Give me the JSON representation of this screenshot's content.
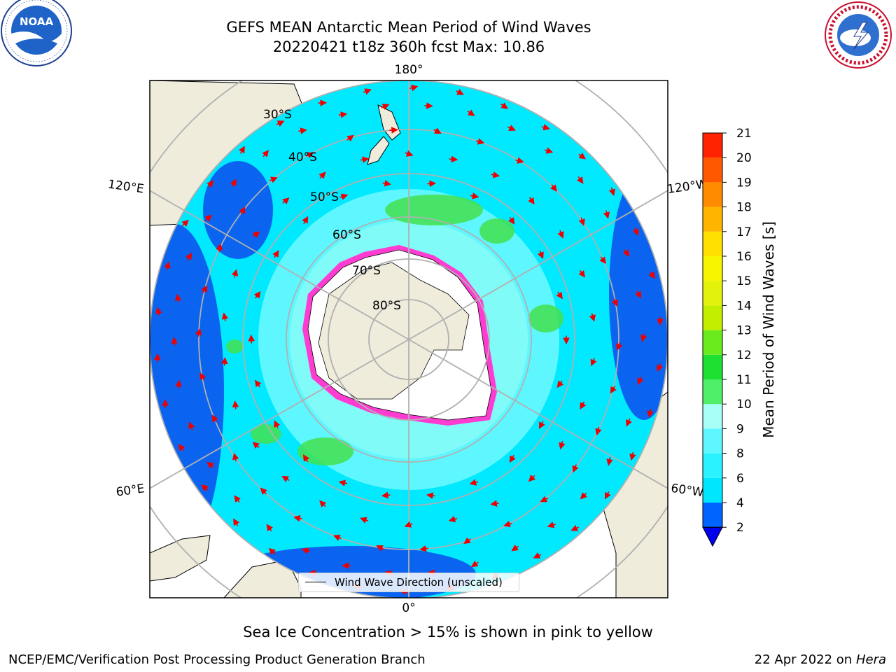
{
  "title_line1": "GEFS MEAN Antarctic Mean Period of Wind Waves",
  "title_line2": "20220421 t18z 360h fcst   Max: 10.86",
  "logos": {
    "left": {
      "name": "NOAA",
      "text": "NOAA",
      "ring_text": "NATIONAL OCEANIC AND ATMOSPHERIC ADMINISTRATION · U.S. DEPARTMENT OF COMMERCE"
    },
    "right": {
      "name": "National Weather Service",
      "ring_text": "NATIONAL WEATHER SERVICE"
    }
  },
  "map": {
    "projection": "south-polar-stereographic",
    "longitude_labels": {
      "top": "180°",
      "bottom": "0°",
      "left_upper": "120°E",
      "left_lower": "60°E",
      "right_upper": "120°W",
      "right_lower": "60°W"
    },
    "latitude_labels": [
      "30°S",
      "40°S",
      "50°S",
      "60°S",
      "70°S",
      "80°S"
    ],
    "colors": {
      "ocean_low": "#0a64f0",
      "ocean_mid": "#00e9ff",
      "ocean_light": "#8ffcf5",
      "green": "#43e04e",
      "land": "#efecdc",
      "ice_edge": "#ff3cd2",
      "arrows": "#ee0000"
    }
  },
  "legend": {
    "label": "Wind Wave Direction (unscaled)"
  },
  "colorbar": {
    "label": "Mean Period of Wind Waves [s]",
    "ticks": [
      "2",
      "4",
      "6",
      "8",
      "9",
      "10",
      "11",
      "12",
      "13",
      "14",
      "15",
      "16",
      "17",
      "18",
      "19",
      "20",
      "21"
    ],
    "colors": [
      "#0064ff",
      "#00e6ff",
      "#2af2ff",
      "#5ff7ff",
      "#a8fff8",
      "#4fef6a",
      "#1ee030",
      "#6aeb1d",
      "#c4ee00",
      "#e3f20a",
      "#f7f500",
      "#ffe000",
      "#ffb500",
      "#ff8c00",
      "#ff5800",
      "#ff2200",
      "#0000ee"
    ]
  },
  "note": "Sea Ice Concentration > 15% is shown in pink to yellow",
  "footer_left": "NCEP/EMC/Verification Post Processing Product Generation Branch",
  "footer_right_prefix": "22 Apr 2022 on ",
  "footer_right_host": "Hera"
}
